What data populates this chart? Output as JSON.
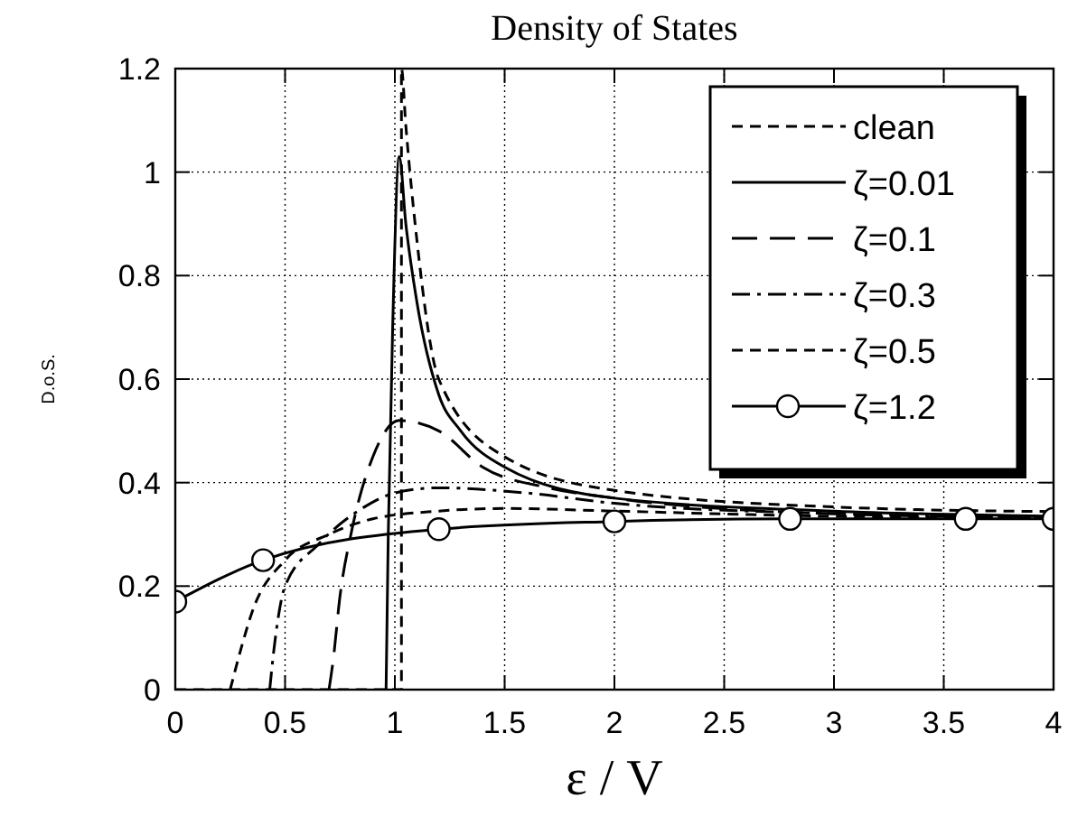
{
  "chart_data": {
    "type": "line",
    "title": "Density of States",
    "xlabel": "ε / V",
    "ylabel": "D.o.S.",
    "xlim": [
      0,
      4
    ],
    "ylim": [
      0,
      1.2
    ],
    "xticks": [
      0,
      0.5,
      1,
      1.5,
      2,
      2.5,
      3,
      3.5,
      4
    ],
    "yticks": [
      0,
      0.2,
      0.4,
      0.6,
      0.8,
      1,
      1.2
    ],
    "grid": true,
    "legend": "top right",
    "marker": "none",
    "series": [
      {
        "name": "clean",
        "color": "#000000",
        "line_style": "dashed",
        "x": [
          0,
          1.0,
          1.03,
          1.03,
          1.05,
          1.1,
          1.2,
          1.5,
          2,
          3,
          4
        ],
        "values": [
          0,
          0,
          0,
          1.2,
          1.09,
          0.87,
          0.6,
          0.45,
          0.385,
          0.353,
          0.344
        ]
      },
      {
        "name": "ζ=0.01",
        "color": "#000000",
        "line_style": "solid",
        "x": [
          0.96,
          0.97,
          0.99,
          1.02,
          1.05,
          1.1,
          1.2,
          1.3,
          1.5,
          2,
          3,
          4
        ],
        "values": [
          0,
          0.3,
          0.7,
          1.03,
          0.9,
          0.75,
          0.57,
          0.5,
          0.43,
          0.37,
          0.345,
          0.335
        ]
      },
      {
        "name": "ζ=0.1",
        "color": "#000000",
        "line_style": "longdash",
        "x": [
          0.7,
          0.72,
          0.75,
          0.8,
          0.9,
          1.02,
          1.2,
          1.4,
          1.7,
          2,
          3,
          4
        ],
        "values": [
          0,
          0.06,
          0.18,
          0.3,
          0.45,
          0.52,
          0.5,
          0.43,
          0.39,
          0.37,
          0.34,
          0.333
        ]
      },
      {
        "name": "ζ=0.3",
        "color": "#000000",
        "line_style": "dashdot",
        "x": [
          0.43,
          0.45,
          0.5,
          0.65,
          0.85,
          1.0,
          1.2,
          1.6,
          2,
          3,
          4
        ],
        "values": [
          0,
          0.08,
          0.2,
          0.28,
          0.35,
          0.38,
          0.39,
          0.38,
          0.36,
          0.34,
          0.333
        ]
      },
      {
        "name": "ζ=0.5",
        "color": "#000000",
        "line_style": "dashed",
        "x": [
          0.25,
          0.3,
          0.35,
          0.5,
          0.7,
          0.9,
          1.2,
          1.5,
          2,
          3,
          4
        ],
        "values": [
          0,
          0.08,
          0.15,
          0.25,
          0.3,
          0.33,
          0.345,
          0.35,
          0.345,
          0.335,
          0.332
        ]
      },
      {
        "name": "ζ=1.2",
        "color": "#000000",
        "line_style": "solid",
        "marker": "circle",
        "x": [
          0,
          0.4,
          1.2,
          2,
          2.8,
          3.6,
          4
        ],
        "values": [
          0.17,
          0.25,
          0.31,
          0.325,
          0.33,
          0.33,
          0.33
        ]
      }
    ]
  }
}
